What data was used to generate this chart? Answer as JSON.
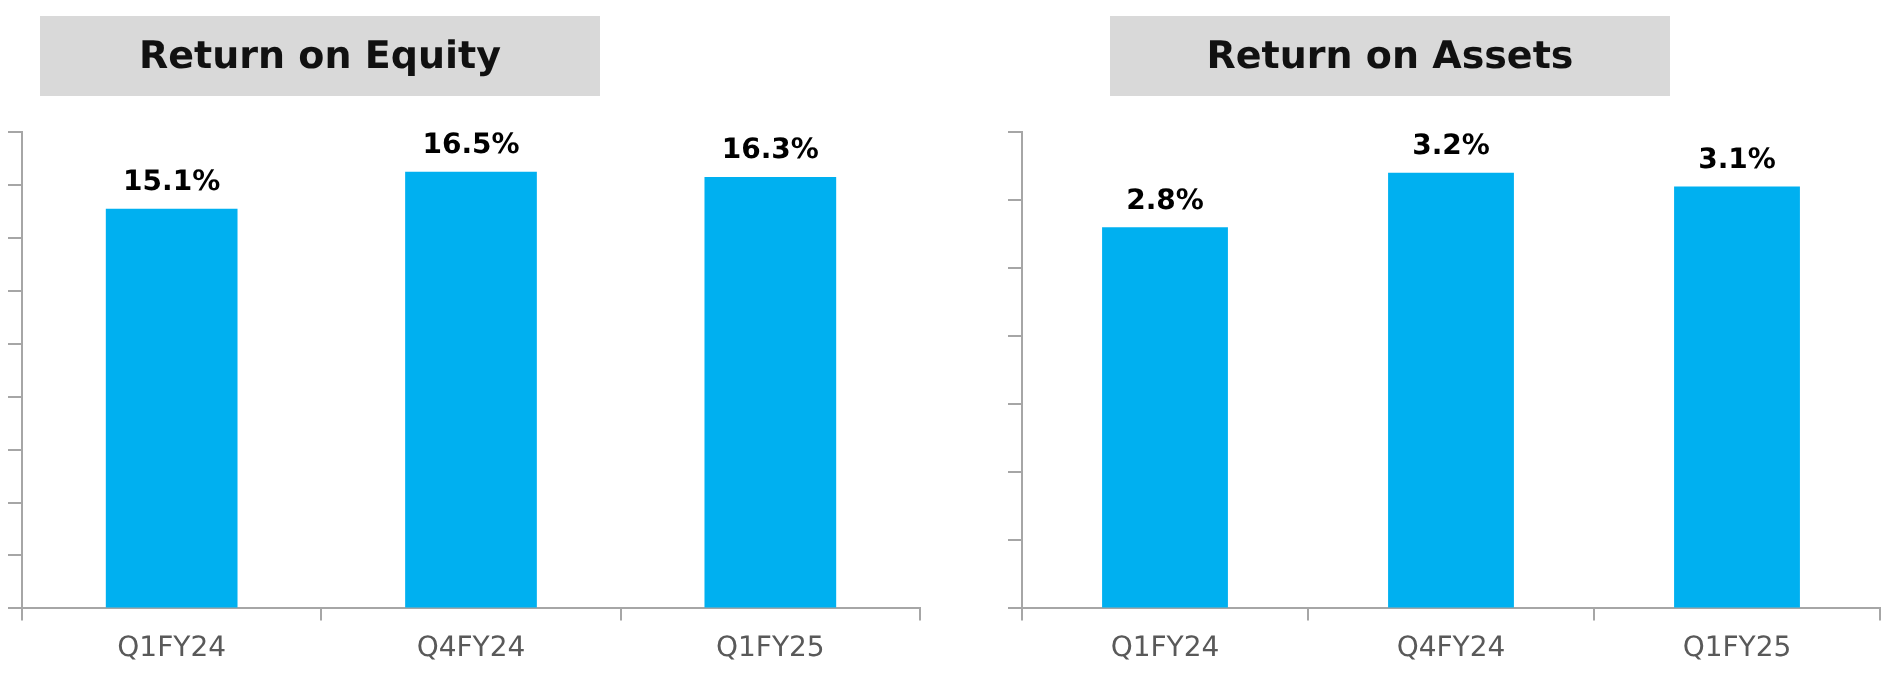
{
  "chart_data": [
    {
      "type": "bar",
      "title": "Return on Equity",
      "categories": [
        "Q1FY24",
        "Q4FY24",
        "Q1FY25"
      ],
      "values": [
        15.1,
        16.5,
        16.3
      ],
      "color": "#00b0f0",
      "value_labels": [
        "15.1%",
        "16.5%",
        "16.3%"
      ],
      "ylim": [
        0,
        18
      ],
      "yticks": [
        {
          "value": 0,
          "label": null
        },
        {
          "value": 2,
          "label": null
        },
        {
          "value": 4,
          "label": null
        },
        {
          "value": 6,
          "label": null
        },
        {
          "value": 8,
          "label": null
        },
        {
          "value": 10,
          "label": null
        },
        {
          "value": 12,
          "label": null
        },
        {
          "value": 14,
          "label": null
        },
        {
          "value": 16,
          "label": null
        },
        {
          "value": 18,
          "label": null
        }
      ],
      "grid": false,
      "legend": false,
      "tick_labels": "x"
    },
    {
      "type": "bar",
      "title": "Return on Assets",
      "categories": [
        "Q1FY24",
        "Q4FY24",
        "Q1FY25"
      ],
      "values": [
        2.8,
        3.2,
        3.1
      ],
      "color": "#00b0f0",
      "value_labels": [
        "2.8%",
        "3.2%",
        "3.1%"
      ],
      "ylim": [
        0,
        3.5
      ],
      "yticks": [
        {
          "value": 0,
          "label": null
        },
        {
          "value": 0.5,
          "label": null
        },
        {
          "value": 1,
          "label": null
        },
        {
          "value": 1.5,
          "label": null
        },
        {
          "value": 2,
          "label": null
        },
        {
          "value": 2.5,
          "label": null
        },
        {
          "value": 3,
          "label": null
        },
        {
          "value": 3.5,
          "label": null
        }
      ],
      "grid": false,
      "legend": false,
      "tick_labels": "x"
    }
  ]
}
